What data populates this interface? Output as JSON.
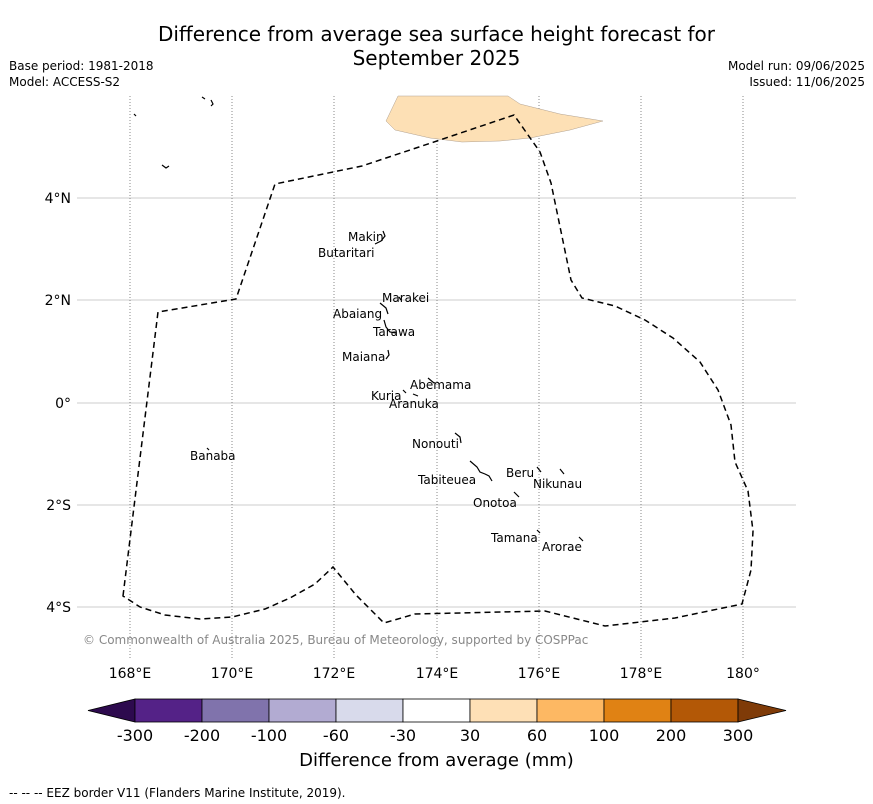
{
  "title_line1": "Difference from average sea surface height forecast for",
  "title_line2": "September 2025",
  "meta": {
    "base_period": "Base period: 1981-2018",
    "model": "Model: ACCESS-S2",
    "model_run": "Model run: 09/06/2025",
    "issued": "Issued: 11/06/2025"
  },
  "map": {
    "lon_ticks": [
      "168°E",
      "170°E",
      "172°E",
      "174°E",
      "176°E",
      "178°E",
      "180°"
    ],
    "lat_ticks": [
      "4°N",
      "2°N",
      "0°",
      "2°S",
      "4°S"
    ],
    "islands": [
      "Makin",
      "Butaritari",
      "Marakei",
      "Abaiang",
      "Tarawa",
      "Maiana",
      "Abemama",
      "Kuria",
      "Aranuka",
      "Nonouti",
      "Banaba",
      "Beru",
      "Nikunau",
      "Tabiteuea",
      "Onotoa",
      "Tamana",
      "Arorae"
    ],
    "copyright": "© Commonwealth of Australia 2025, Bureau of Meteorology, supported by COSPPac",
    "colors": {
      "land_fill": "#fde0b5",
      "grid": "#cccccc",
      "eez": "#000000"
    }
  },
  "colorbar": {
    "ticks": [
      "-300",
      "-200",
      "-100",
      "-60",
      "-30",
      "30",
      "60",
      "100",
      "200",
      "300"
    ],
    "colors": [
      "#2d0a4e",
      "#542287",
      "#8073ac",
      "#b2abd2",
      "#d8daeb",
      "#ffffff",
      "#fee0b6",
      "#fdb863",
      "#e08214",
      "#b35806",
      "#7f3b08"
    ],
    "label": "Difference from average (mm)"
  },
  "footnote": "--  --  -- EEZ border V11 (Flanders Marine Institute, 2019)."
}
